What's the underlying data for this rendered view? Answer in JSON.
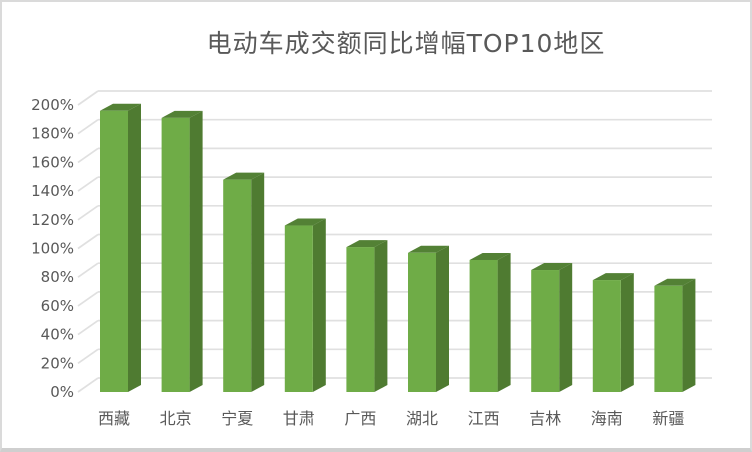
{
  "page": {
    "background": "#ffffff",
    "frame_border_color": "#dadada",
    "frame_bottom_color": "#cfcfcf"
  },
  "chart_data": {
    "type": "bar",
    "variant": "3d-column",
    "title": "电动车成交额同比增幅TOP10地区",
    "categories": [
      "西藏",
      "北京",
      "宁夏",
      "甘肃",
      "广西",
      "湖北",
      "江西",
      "吉林",
      "海南",
      "新疆"
    ],
    "values": [
      196,
      191,
      148,
      116,
      101,
      97,
      92,
      85,
      78,
      74
    ],
    "unit": "%",
    "ylim": [
      0,
      200
    ],
    "ytick_step": 20,
    "ytick_labels": [
      "0%",
      "20%",
      "40%",
      "60%",
      "80%",
      "100%",
      "120%",
      "140%",
      "160%",
      "180%",
      "200%"
    ],
    "grid": true,
    "legend": "none",
    "colors": {
      "bar_front": "#6fac47",
      "bar_side": "#4f7b31",
      "bar_top": "#538135",
      "gridline": "#e0e0e0",
      "axis_text": "#595959",
      "title_text": "#595959"
    }
  }
}
